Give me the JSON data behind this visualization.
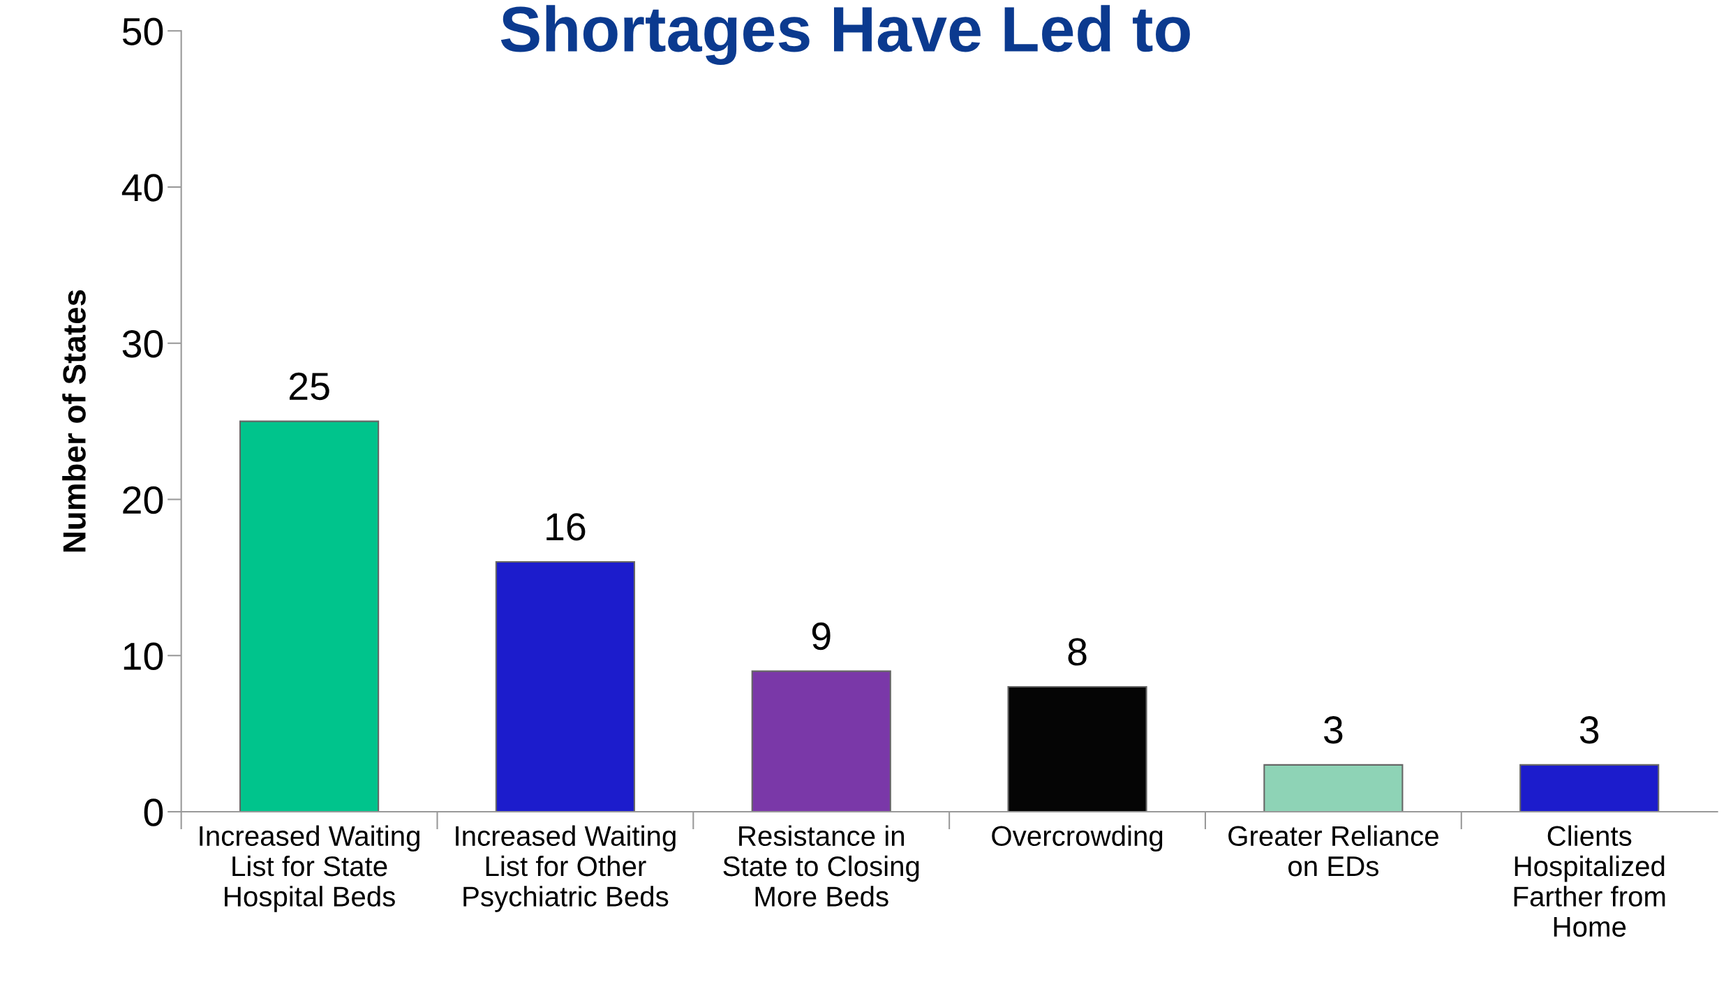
{
  "chart_data": {
    "type": "bar",
    "title": "Shortages Have Led to",
    "ylabel": "Number of States",
    "categories": [
      "Increased Waiting\nList for State\nHospital Beds",
      "Increased Waiting\nList for Other\nPsychiatric Beds",
      "Resistance in\nState to Closing\nMore Beds",
      "Overcrowding",
      "Greater Reliance\non EDs",
      "Clients\nHospitalized\nFarther from\nHome"
    ],
    "values": [
      25,
      16,
      9,
      8,
      3,
      3
    ],
    "colors": [
      "#00c48c",
      "#1c1ccc",
      "#7a38a8",
      "#050505",
      "#8ed3b6",
      "#1c1ccc"
    ],
    "ylim": [
      0,
      50
    ],
    "yticks": [
      0,
      10,
      20,
      30,
      40,
      50
    ],
    "data_labels": true,
    "grid": false,
    "legend": false
  }
}
